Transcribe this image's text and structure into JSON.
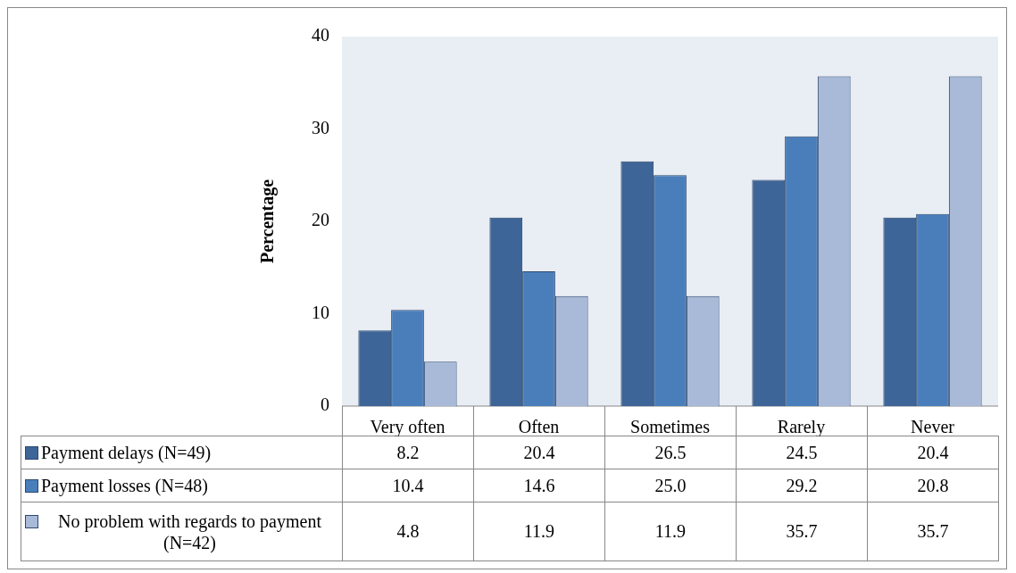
{
  "chart_data": {
    "type": "bar",
    "ylabel": "Percentage",
    "categories": [
      "Very often",
      "Often",
      "Sometimes",
      "Rarely",
      "Never"
    ],
    "series": [
      {
        "name": "Payment delays (N=49)",
        "color": "#3e6597",
        "values": [
          8.2,
          20.4,
          26.5,
          24.5,
          20.4
        ],
        "value_labels": [
          "8.2",
          "20.4",
          "26.5",
          "24.5",
          "20.4"
        ]
      },
      {
        "name": "Payment losses (N=48)",
        "color": "#4a7ebb",
        "values": [
          10.4,
          14.6,
          25.0,
          29.2,
          20.8
        ],
        "value_labels": [
          "10.4",
          "14.6",
          "25.0",
          "29.2",
          "20.8"
        ]
      },
      {
        "name": "No problem with regards to payment (N=42)",
        "color": "#a9b9d8",
        "values": [
          4.8,
          11.9,
          11.9,
          35.7,
          35.7
        ],
        "value_labels": [
          "4.8",
          "11.9",
          "11.9",
          "35.7",
          "35.7"
        ]
      }
    ],
    "ylim": [
      0,
      40
    ],
    "yticks": [
      0,
      10,
      20,
      30,
      40
    ],
    "grid": false,
    "legend": "bottom"
  }
}
